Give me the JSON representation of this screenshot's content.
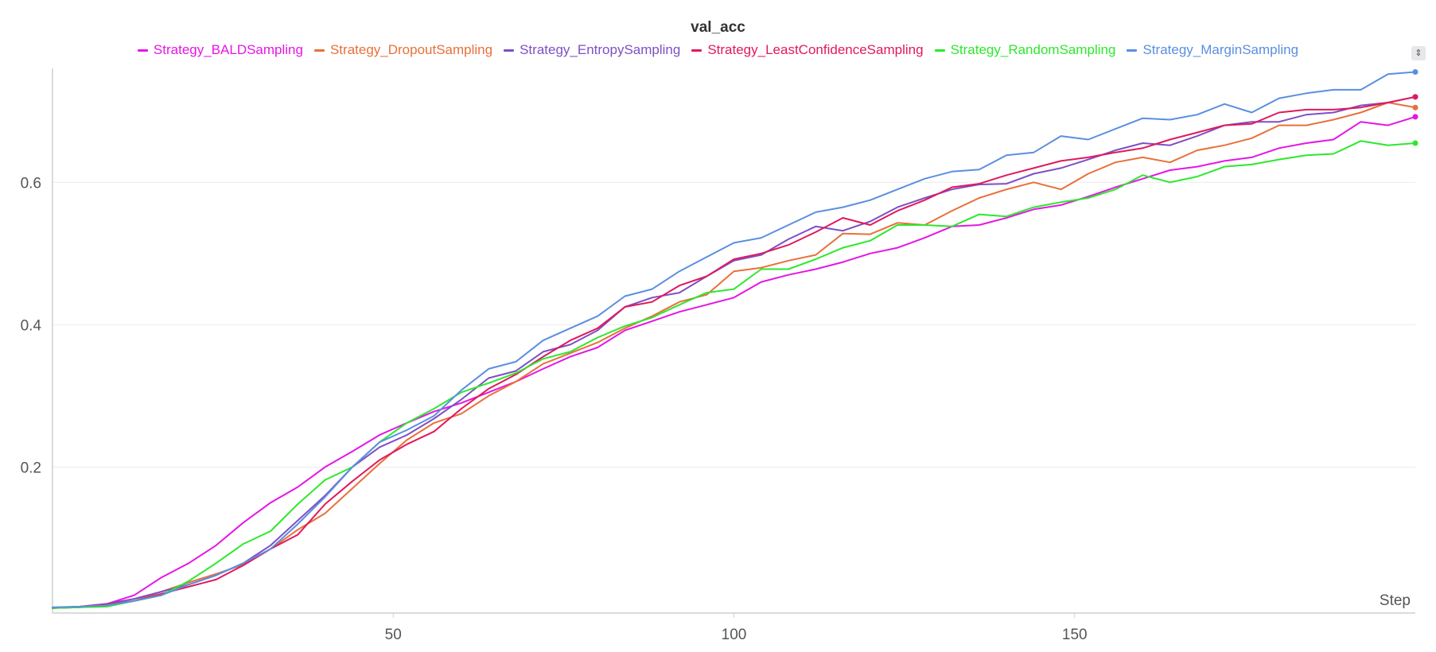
{
  "chart_data": {
    "type": "line",
    "title": "val_acc",
    "xlabel": "Step",
    "ylabel": "",
    "xlim": [
      0,
      200
    ],
    "ylim": [
      -0.005,
      0.76
    ],
    "x_ticks": [
      50,
      100,
      150
    ],
    "y_ticks": [
      0.2,
      0.4,
      0.6
    ],
    "grid": true,
    "legend_position": "top-center",
    "x": [
      0,
      4,
      8,
      12,
      16,
      20,
      24,
      28,
      32,
      36,
      40,
      44,
      48,
      52,
      56,
      60,
      64,
      68,
      72,
      76,
      80,
      84,
      88,
      92,
      96,
      100,
      104,
      108,
      112,
      116,
      120,
      124,
      128,
      132,
      136,
      140,
      144,
      148,
      152,
      156,
      160,
      164,
      168,
      172,
      176,
      180,
      184,
      188,
      192,
      196,
      200
    ],
    "series": [
      {
        "name": "Strategy_BALDSampling",
        "color": "#e516e5",
        "values": [
          0.002,
          0.004,
          0.008,
          0.02,
          0.045,
          0.065,
          0.09,
          0.122,
          0.15,
          0.172,
          0.2,
          0.222,
          0.245,
          0.262,
          0.278,
          0.29,
          0.305,
          0.32,
          0.338,
          0.355,
          0.368,
          0.392,
          0.405,
          0.418,
          0.428,
          0.438,
          0.46,
          0.47,
          0.478,
          0.488,
          0.5,
          0.508,
          0.522,
          0.538,
          0.54,
          0.55,
          0.562,
          0.568,
          0.58,
          0.593,
          0.605,
          0.617,
          0.622,
          0.63,
          0.635,
          0.648,
          0.655,
          0.66,
          0.685,
          0.68,
          0.692
        ]
      },
      {
        "name": "Strategy_DropoutSampling",
        "color": "#e8703a",
        "values": [
          0.002,
          0.003,
          0.006,
          0.012,
          0.025,
          0.038,
          0.05,
          0.063,
          0.085,
          0.112,
          0.135,
          0.17,
          0.205,
          0.238,
          0.262,
          0.275,
          0.3,
          0.32,
          0.345,
          0.36,
          0.375,
          0.395,
          0.412,
          0.432,
          0.442,
          0.475,
          0.48,
          0.49,
          0.498,
          0.528,
          0.527,
          0.543,
          0.54,
          0.56,
          0.578,
          0.59,
          0.6,
          0.59,
          0.612,
          0.628,
          0.635,
          0.628,
          0.645,
          0.652,
          0.662,
          0.68,
          0.68,
          0.688,
          0.698,
          0.712,
          0.705
        ]
      },
      {
        "name": "Strategy_EntropySampling",
        "color": "#7e4fc4",
        "values": [
          0.002,
          0.003,
          0.008,
          0.015,
          0.025,
          0.035,
          0.048,
          0.065,
          0.09,
          0.125,
          0.16,
          0.2,
          0.228,
          0.245,
          0.268,
          0.295,
          0.325,
          0.335,
          0.362,
          0.372,
          0.392,
          0.425,
          0.438,
          0.445,
          0.468,
          0.49,
          0.498,
          0.52,
          0.538,
          0.532,
          0.545,
          0.565,
          0.578,
          0.59,
          0.597,
          0.598,
          0.612,
          0.62,
          0.632,
          0.645,
          0.655,
          0.652,
          0.665,
          0.68,
          0.685,
          0.685,
          0.695,
          0.698,
          0.708,
          0.712,
          0.72
        ]
      },
      {
        "name": "Strategy_LeastConfidenceSampling",
        "color": "#e0195e",
        "values": [
          0.002,
          0.004,
          0.007,
          0.012,
          0.022,
          0.032,
          0.042,
          0.062,
          0.085,
          0.105,
          0.148,
          0.18,
          0.21,
          0.232,
          0.25,
          0.282,
          0.31,
          0.33,
          0.355,
          0.378,
          0.395,
          0.425,
          0.432,
          0.455,
          0.468,
          0.492,
          0.5,
          0.512,
          0.53,
          0.55,
          0.54,
          0.56,
          0.575,
          0.593,
          0.598,
          0.61,
          0.62,
          0.63,
          0.635,
          0.642,
          0.648,
          0.66,
          0.67,
          0.68,
          0.682,
          0.698,
          0.702,
          0.702,
          0.705,
          0.712,
          0.72
        ]
      },
      {
        "name": "Strategy_RandomSampling",
        "color": "#2de82d",
        "values": [
          0.002,
          0.003,
          0.004,
          0.012,
          0.02,
          0.04,
          0.065,
          0.092,
          0.11,
          0.148,
          0.182,
          0.2,
          0.235,
          0.262,
          0.282,
          0.305,
          0.318,
          0.332,
          0.352,
          0.362,
          0.382,
          0.398,
          0.41,
          0.428,
          0.445,
          0.45,
          0.478,
          0.478,
          0.492,
          0.508,
          0.518,
          0.54,
          0.54,
          0.538,
          0.555,
          0.552,
          0.565,
          0.572,
          0.578,
          0.59,
          0.61,
          0.6,
          0.608,
          0.622,
          0.625,
          0.632,
          0.638,
          0.64,
          0.658,
          0.652,
          0.655
        ]
      },
      {
        "name": "Strategy_MarginSampling",
        "color": "#5a8fe0",
        "values": [
          0.003,
          0.004,
          0.006,
          0.012,
          0.02,
          0.035,
          0.048,
          0.065,
          0.085,
          0.12,
          0.158,
          0.2,
          0.235,
          0.252,
          0.272,
          0.308,
          0.338,
          0.348,
          0.378,
          0.395,
          0.412,
          0.44,
          0.45,
          0.475,
          0.495,
          0.515,
          0.522,
          0.54,
          0.558,
          0.565,
          0.575,
          0.59,
          0.605,
          0.615,
          0.618,
          0.638,
          0.642,
          0.665,
          0.66,
          0.675,
          0.69,
          0.688,
          0.695,
          0.71,
          0.698,
          0.718,
          0.725,
          0.73,
          0.73,
          0.752,
          0.755
        ]
      }
    ]
  },
  "menu_icon": "sort-icon"
}
